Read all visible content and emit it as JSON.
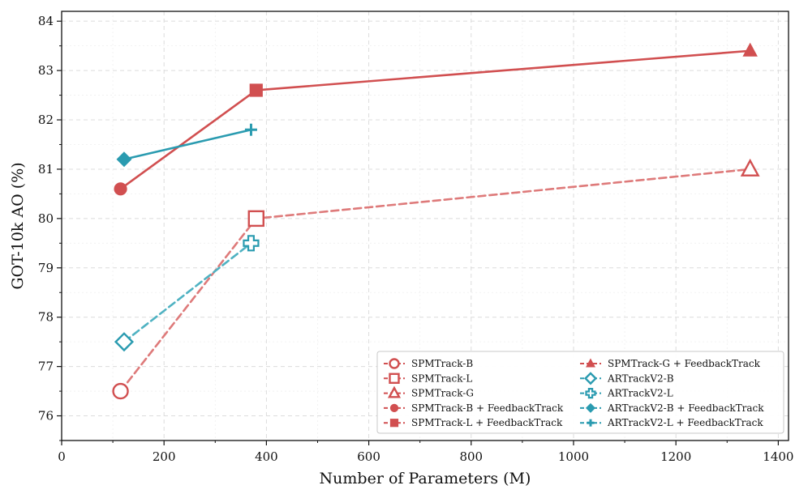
{
  "chart_data": {
    "type": "line",
    "title": "",
    "xlabel": "Number of Parameters (M)",
    "ylabel": "GOT-10k AO (%)",
    "xlim": [
      0,
      1420
    ],
    "ylim": [
      75.5,
      84.2
    ],
    "xticks": [
      0,
      200,
      400,
      600,
      800,
      1000,
      1200,
      1400
    ],
    "yticks": [
      76,
      77,
      78,
      79,
      80,
      81,
      82,
      83,
      84
    ],
    "grid": true,
    "legend_position": "lower-right",
    "colors": {
      "spm": "#d14f50",
      "spm_dashed": "#de7a7a",
      "art": "#2a9bb0",
      "art_dashed": "#4fb2c2"
    },
    "series": [
      {
        "name": "SPMTrack-B",
        "x": [
          115
        ],
        "y": [
          76.5
        ],
        "marker": "circle-open",
        "color": "#d14f50"
      },
      {
        "name": "SPMTrack-L",
        "x": [
          380
        ],
        "y": [
          80.0
        ],
        "marker": "square-open",
        "color": "#d14f50"
      },
      {
        "name": "SPMTrack-G",
        "x": [
          1345
        ],
        "y": [
          81.0
        ],
        "marker": "triangle-open",
        "color": "#d14f50"
      },
      {
        "name": "SPMTrack-B + FeedbackTrack",
        "x": [
          115
        ],
        "y": [
          80.6
        ],
        "marker": "circle-filled",
        "color": "#d14f50"
      },
      {
        "name": "SPMTrack-L + FeedbackTrack",
        "x": [
          380
        ],
        "y": [
          82.6
        ],
        "marker": "square-filled",
        "color": "#d14f50"
      },
      {
        "name": "SPMTrack-G + FeedbackTrack",
        "x": [
          1345
        ],
        "y": [
          83.4
        ],
        "marker": "triangle-filled",
        "color": "#d14f50"
      },
      {
        "name": "ARTrackV2-B",
        "x": [
          122
        ],
        "y": [
          77.5
        ],
        "marker": "diamond-open",
        "color": "#2a9bb0"
      },
      {
        "name": "ARTrackV2-L",
        "x": [
          370
        ],
        "y": [
          79.5
        ],
        "marker": "plus-open",
        "color": "#2a9bb0"
      },
      {
        "name": "ARTrackV2-B + FeedbackTrack",
        "x": [
          122
        ],
        "y": [
          81.2
        ],
        "marker": "diamond-filled",
        "color": "#2a9bb0"
      },
      {
        "name": "ARTrackV2-L + FeedbackTrack",
        "x": [
          370
        ],
        "y": [
          81.8
        ],
        "marker": "plus-thin",
        "color": "#2a9bb0"
      }
    ],
    "connecting_lines": [
      {
        "from": "SPMTrack baseline",
        "x": [
          115,
          380,
          1345
        ],
        "y": [
          76.5,
          80.0,
          81.0
        ],
        "style": "dashed",
        "color": "#de7a7a"
      },
      {
        "from": "SPMTrack + FeedbackTrack",
        "x": [
          115,
          380,
          1345
        ],
        "y": [
          80.6,
          82.6,
          83.4
        ],
        "style": "solid",
        "color": "#d14f50"
      },
      {
        "from": "ARTrackV2 baseline",
        "x": [
          122,
          370
        ],
        "y": [
          77.5,
          79.5
        ],
        "style": "dashed",
        "color": "#4fb2c2"
      },
      {
        "from": "ARTrackV2 + FeedbackTrack",
        "x": [
          122,
          370
        ],
        "y": [
          81.2,
          81.8
        ],
        "style": "solid",
        "color": "#2a9bb0"
      }
    ],
    "legend_columns": [
      [
        "SPMTrack-B",
        "SPMTrack-L",
        "SPMTrack-G",
        "SPMTrack-B + FeedbackTrack",
        "SPMTrack-L + FeedbackTrack"
      ],
      [
        "SPMTrack-G + FeedbackTrack",
        "ARTrackV2-B",
        "ARTrackV2-L",
        "ARTrackV2-B + FeedbackTrack",
        "ARTrackV2-L + FeedbackTrack"
      ]
    ]
  }
}
